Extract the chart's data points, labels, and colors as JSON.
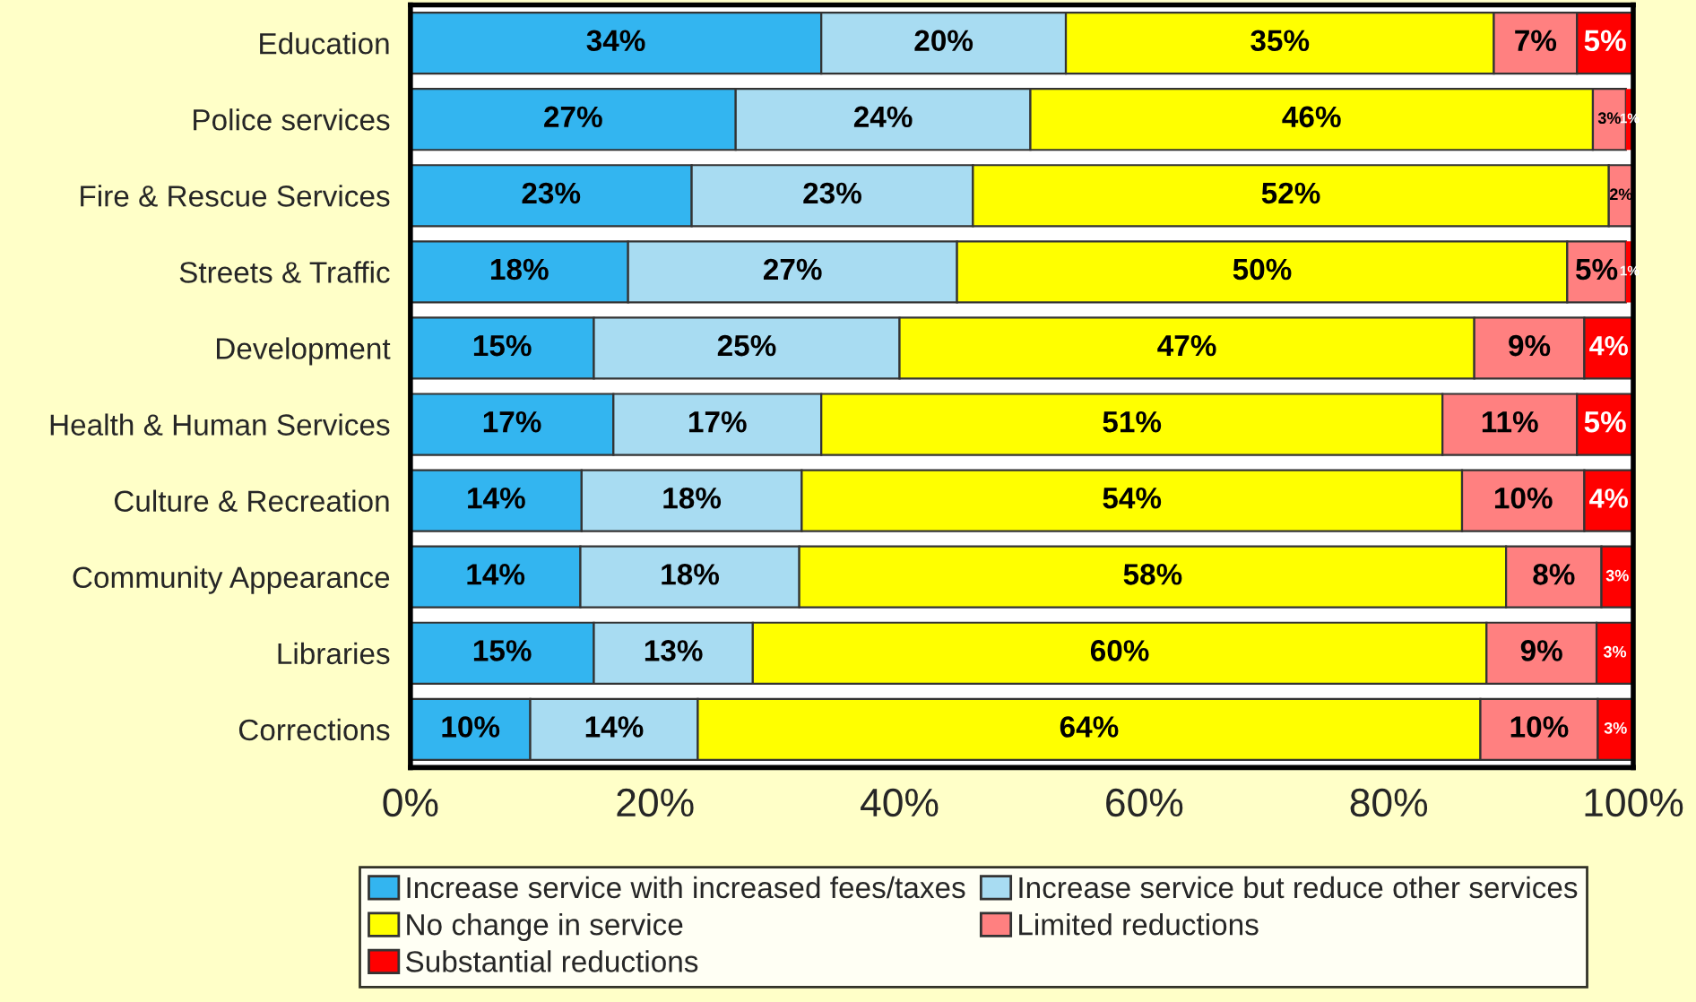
{
  "chart_data": {
    "type": "bar",
    "orientation": "horizontal",
    "stacked": true,
    "categories": [
      "Education",
      "Police services",
      "Fire & Rescue Services",
      "Streets & Traffic",
      "Development",
      "Health & Human Services",
      "Culture & Recreation",
      "Community Appearance",
      "Libraries",
      "Corrections"
    ],
    "series": [
      {
        "name": "Increase service with increased fees/taxes",
        "color": "#33b5f0",
        "values": [
          33.6,
          26.6,
          23,
          17.8,
          15,
          16.6,
          14,
          13.9,
          15,
          9.8
        ],
        "value_labels": [
          "34%",
          "27%",
          "23%",
          "18%",
          "15%",
          "17%",
          "14%",
          "14%",
          "15%",
          "10%"
        ]
      },
      {
        "name": "Increase service but reduce other services",
        "color": "#a8dcf2",
        "values": [
          20,
          24.1,
          23,
          26.9,
          25,
          17,
          18,
          17.9,
          13,
          13.7
        ],
        "value_labels": [
          "20%",
          "24%",
          "23%",
          "27%",
          "25%",
          "17%",
          "18%",
          "18%",
          "13%",
          "14%"
        ]
      },
      {
        "name": "No change in service",
        "color": "#ffff00",
        "values": [
          35,
          46,
          52,
          49.9,
          47,
          50.8,
          54,
          57.8,
          60,
          64
        ],
        "value_labels": [
          "35%",
          "46%",
          "52%",
          "50%",
          "47%",
          "51%",
          "54%",
          "58%",
          "60%",
          "64%"
        ]
      },
      {
        "name": "Limited reductions",
        "color": "#ff8080",
        "values": [
          6.8,
          2.7,
          2,
          4.8,
          9,
          11,
          10,
          7.8,
          9,
          9.6
        ],
        "value_labels": [
          "7%",
          "3%",
          "2%",
          "5%",
          "9%",
          "11%",
          "10%",
          "8%",
          "9%",
          "10%"
        ]
      },
      {
        "name": "Substantial reductions",
        "color": "#ff0000",
        "values": [
          4.6,
          0.6,
          null,
          0.6,
          4,
          4.6,
          4,
          2.6,
          3,
          2.9
        ],
        "value_labels": [
          "5%",
          "1%",
          null,
          "1%",
          "4%",
          "5%",
          "4%",
          "3%",
          "3%",
          "3%"
        ]
      }
    ],
    "xlim": [
      0,
      100
    ],
    "xticks": [
      {
        "value": 0,
        "label": "0%"
      },
      {
        "value": 20,
        "label": "20%"
      },
      {
        "value": 40,
        "label": "40%"
      },
      {
        "value": 60,
        "label": "60%"
      },
      {
        "value": 80,
        "label": "80%"
      },
      {
        "value": 100,
        "label": "100%"
      }
    ],
    "legend": "bottom",
    "grid": false
  }
}
